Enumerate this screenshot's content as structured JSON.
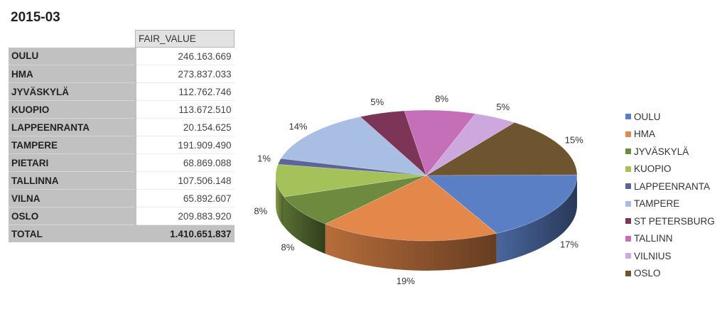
{
  "title": "2015-03",
  "table": {
    "header": "FAIR_VALUE",
    "rows": [
      {
        "name": "OULU",
        "value": "246.163.669"
      },
      {
        "name": "HMA",
        "value": "273.837.033"
      },
      {
        "name": "JYVÄSKYLÄ",
        "value": "112.762.746"
      },
      {
        "name": "KUOPIO",
        "value": "113.672.510"
      },
      {
        "name": "LAPPEENRANTA",
        "value": "20.154.625"
      },
      {
        "name": "TAMPERE",
        "value": "191.909.490"
      },
      {
        "name": "PIETARI",
        "value": "68.869.088"
      },
      {
        "name": "TALLINNA",
        "value": "107.506.148"
      },
      {
        "name": "VILNA",
        "value": "65.892.607"
      },
      {
        "name": "OSLO",
        "value": "209.883.920"
      }
    ],
    "total": {
      "name": "TOTAL",
      "value": "1.410.651.837"
    }
  },
  "chart_data": {
    "type": "pie",
    "title": "",
    "categories": [
      "OULU",
      "HMA",
      "JYVÄSKYLÄ",
      "KUOPIO",
      "LAPPEENRANTA",
      "TAMPERE",
      "ST PETERSBURG",
      "TALLINN",
      "VILNIUS",
      "OSLO"
    ],
    "values": [
      246163669,
      273837033,
      112762746,
      113672510,
      20154625,
      191909490,
      68869088,
      107506148,
      65892607,
      209883920
    ],
    "labels": [
      "17%",
      "19%",
      "8%",
      "8%",
      "1%",
      "14%",
      "5%",
      "8%",
      "5%",
      "15%"
    ],
    "colors": [
      "#5b7fc4",
      "#e3884a",
      "#6d8a3e",
      "#a5c25a",
      "#5d6496",
      "#a8bee3",
      "#7d3557",
      "#c56fb9",
      "#cca8de",
      "#6e5530"
    ],
    "legend": "right",
    "style": "3d"
  }
}
